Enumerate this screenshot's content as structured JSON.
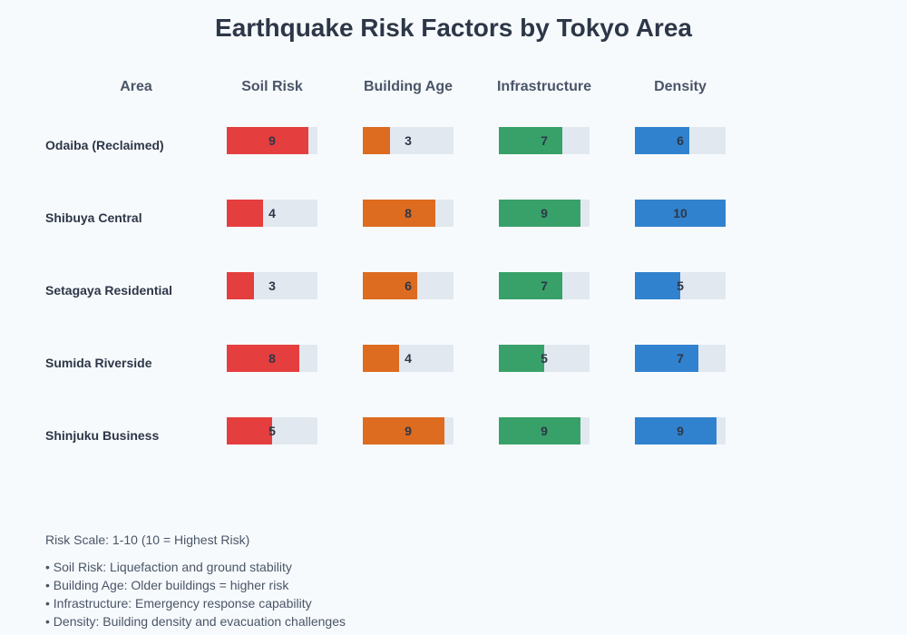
{
  "chart_data": {
    "type": "bar",
    "title": "Earthquake Risk Factors by Tokyo Area",
    "header_area": "Area",
    "categories": [
      "Odaiba (Reclaimed)",
      "Shibuya Central",
      "Setagaya Residential",
      "Sumida Riverside",
      "Shinjuku Business"
    ],
    "series": [
      {
        "name": "Soil Risk",
        "color": "#e53e3e",
        "values": [
          9,
          4,
          3,
          8,
          5
        ]
      },
      {
        "name": "Building Age",
        "color": "#dd6b20",
        "values": [
          3,
          8,
          6,
          4,
          9
        ]
      },
      {
        "name": "Infrastructure",
        "color": "#38a169",
        "values": [
          7,
          9,
          7,
          5,
          9
        ]
      },
      {
        "name": "Density",
        "color": "#3182ce",
        "values": [
          6,
          10,
          5,
          7,
          9
        ]
      }
    ],
    "ylim": [
      0,
      10
    ],
    "track_color": "#e2e8f0"
  },
  "notes": {
    "scale": "Risk Scale: 1-10 (10 = Highest Risk)",
    "items": [
      "• Soil Risk: Liquefaction and ground stability",
      "• Building Age: Older buildings = higher risk",
      "• Infrastructure: Emergency response capability",
      "• Density: Building density and evacuation challenges"
    ]
  }
}
